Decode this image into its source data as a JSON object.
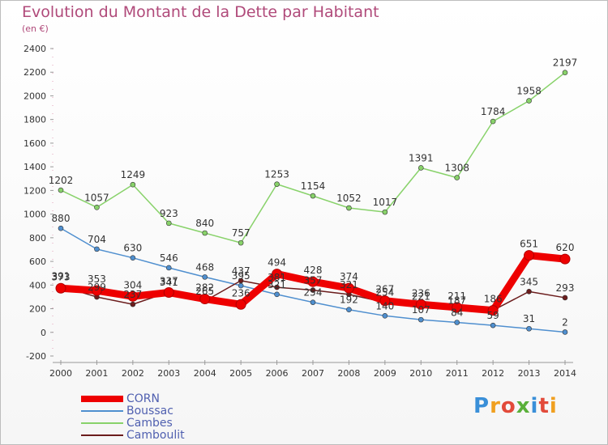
{
  "title": "Evolution du Montant de la Dette par Habitant",
  "subtitle": "(en €)",
  "logo_text": "Proxiti",
  "chart_data": {
    "type": "line",
    "x": [
      "2000",
      "2001",
      "2002",
      "2003",
      "2004",
      "2005",
      "2006",
      "2007",
      "2008",
      "2009",
      "2010",
      "2011",
      "2012",
      "2013",
      "2014"
    ],
    "ylim": [
      -200,
      2400
    ],
    "yticks": [
      -200,
      0,
      200,
      400,
      600,
      800,
      1000,
      1200,
      1400,
      1600,
      1800,
      2000,
      2200,
      2400
    ],
    "grid": false,
    "legend_position": "bottom-left",
    "series": [
      {
        "name": "CORN",
        "color": "#ee0000",
        "values": [
          373,
          353,
          304,
          337,
          282,
          236,
          494,
          428,
          374,
          267,
          236,
          211,
          186,
          651,
          620
        ],
        "labels": [
          "373",
          "353",
          "304",
          "337",
          "282",
          "236",
          "494",
          "428",
          "374",
          "267",
          "236",
          "211",
          "186",
          "651",
          "620"
        ]
      },
      {
        "name": "Boussac",
        "color": "#4f8fcf",
        "values": [
          880,
          704,
          630,
          546,
          468,
          395,
          321,
          254,
          192,
          140,
          107,
          84,
          59,
          31,
          2
        ],
        "labels": [
          "880",
          "704",
          "630",
          "546",
          "468",
          "395",
          "321",
          "254",
          "192",
          "140",
          "107",
          "84",
          "59",
          "31",
          "2"
        ]
      },
      {
        "name": "Cambes",
        "color": "#88d26a",
        "values": [
          1202,
          1057,
          1249,
          923,
          840,
          757,
          1253,
          1154,
          1052,
          1017,
          1391,
          1308,
          1784,
          1958,
          2197
        ],
        "labels": [
          "1202",
          "1057",
          "1249",
          "923",
          "840",
          "757",
          "1253",
          "1154",
          "1052",
          "1017",
          "1391",
          "1308",
          "1784",
          "1958",
          "2197"
        ]
      },
      {
        "name": "Camboulit",
        "color": "#6b1c1c",
        "values": [
          391,
          299,
          237,
          341,
          265,
          437,
          381,
          357,
          321,
          254,
          221,
          187,
          186,
          345,
          293
        ],
        "labels": [
          "391",
          "299",
          "237",
          "341",
          "265",
          "437",
          "381",
          "357",
          "321",
          "254",
          "221",
          "187",
          "",
          "345",
          "293"
        ]
      }
    ]
  }
}
